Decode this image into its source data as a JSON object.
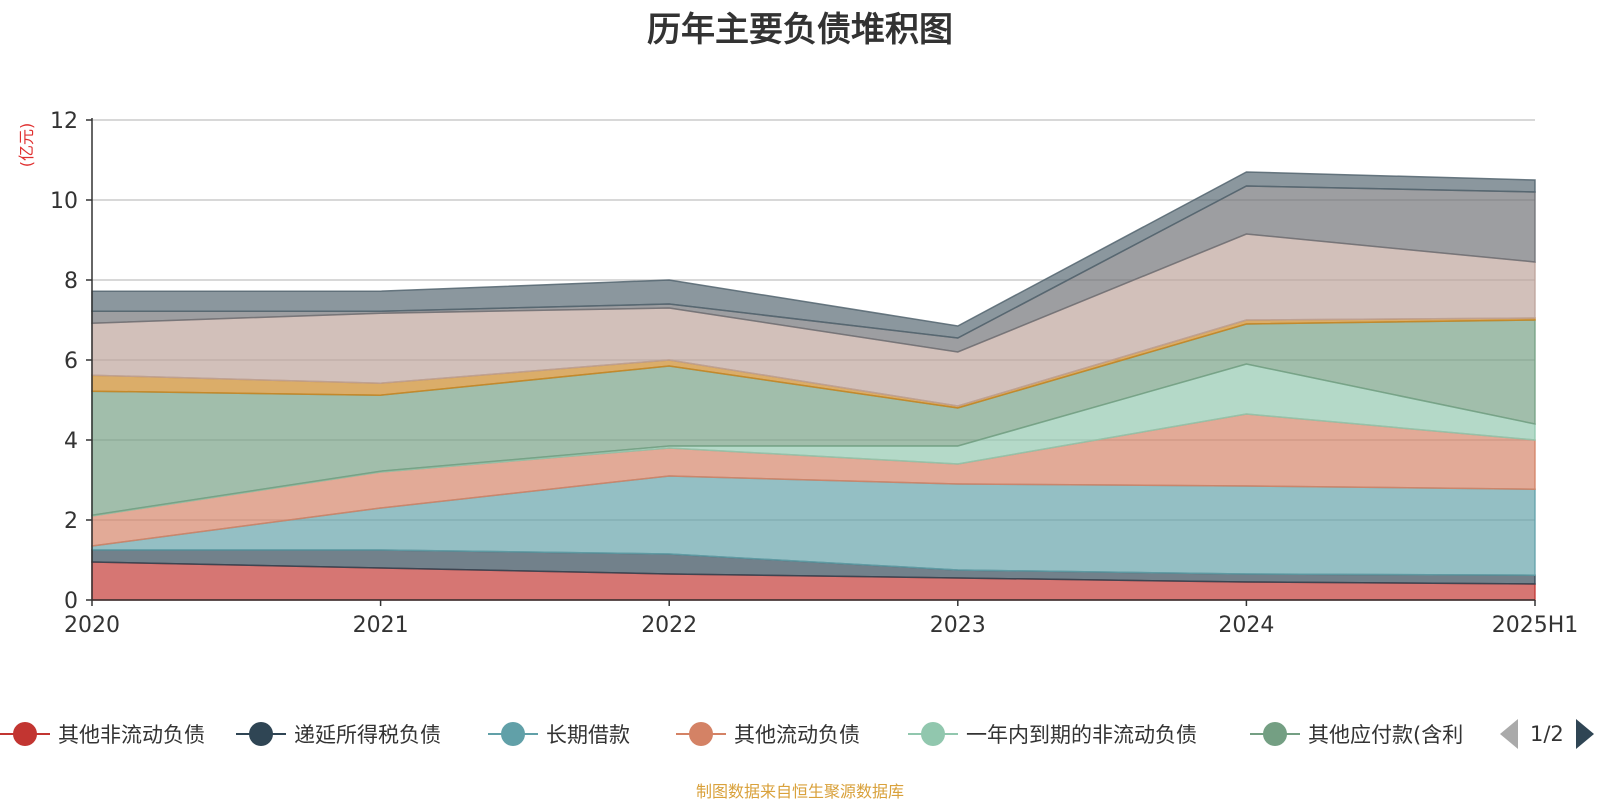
{
  "title": "历年主要负债堆积图",
  "source": "制图数据来自恒生聚源数据库",
  "pager": {
    "text": "1/2"
  },
  "colors": {
    "其他非流动负债": "#c23531",
    "递延所得税负债": "#2f4554",
    "长期借款": "#61a0a8",
    "其他流动负债": "#d48265",
    "一年内到期的非流动负债": "#91c7ae",
    "其他应付款(含利息和股利)": "#749f83",
    "series7": "#ca8622",
    "series8": "#bda29a",
    "series9": "#6e7074",
    "series10": "#546570"
  },
  "legend": [
    {
      "label": "其他非流动负债",
      "color": "#c23531"
    },
    {
      "label": "递延所得税负债",
      "color": "#2f4554"
    },
    {
      "label": "长期借款",
      "color": "#61a0a8"
    },
    {
      "label": "其他流动负债",
      "color": "#d48265"
    },
    {
      "label": "一年内到期的非流动负债",
      "color": "#91c7ae"
    },
    {
      "label": "其他应付款(含利",
      "color": "#749f83"
    }
  ],
  "chart_data": {
    "type": "area",
    "stacked": true,
    "title": "历年主要负债堆积图",
    "ylabel": "(亿元)",
    "xlabel": "",
    "categories": [
      "2020",
      "2021",
      "2022",
      "2023",
      "2024",
      "2025H1"
    ],
    "ylim": [
      0,
      12
    ],
    "yticks": [
      0,
      2,
      4,
      6,
      8,
      10,
      12
    ],
    "grid": true,
    "legend_position": "bottom",
    "series": [
      {
        "name": "其他非流动负债",
        "color": "#c23531",
        "values": [
          0.95,
          0.8,
          0.65,
          0.55,
          0.45,
          0.4
        ]
      },
      {
        "name": "递延所得税负债",
        "color": "#2f4554",
        "values": [
          0.3,
          0.45,
          0.5,
          0.2,
          0.2,
          0.22
        ]
      },
      {
        "name": "长期借款",
        "color": "#61a0a8",
        "values": [
          0.1,
          1.05,
          1.95,
          2.15,
          2.2,
          2.15
        ]
      },
      {
        "name": "其他流动负债",
        "color": "#d48265",
        "values": [
          0.75,
          0.9,
          0.7,
          0.5,
          1.8,
          1.23
        ]
      },
      {
        "name": "一年内到期的非流动负债",
        "color": "#91c7ae",
        "values": [
          0.02,
          0.02,
          0.05,
          0.45,
          1.25,
          0.4
        ]
      },
      {
        "name": "其他应付款(含利",
        "color": "#749f83",
        "values": [
          3.1,
          1.9,
          2.0,
          0.95,
          1.0,
          2.6
        ]
      },
      {
        "color": "#ca8622",
        "values": [
          0.4,
          0.3,
          0.15,
          0.05,
          0.1,
          0.05
        ]
      },
      {
        "color": "#bda29a",
        "values": [
          1.3,
          1.75,
          1.3,
          1.35,
          2.15,
          1.4
        ]
      },
      {
        "color": "#6e7074",
        "values": [
          0.3,
          0.05,
          0.1,
          0.35,
          1.2,
          1.75
        ]
      },
      {
        "color": "#546570",
        "values": [
          0.5,
          0.5,
          0.6,
          0.3,
          0.35,
          0.3
        ]
      }
    ]
  }
}
